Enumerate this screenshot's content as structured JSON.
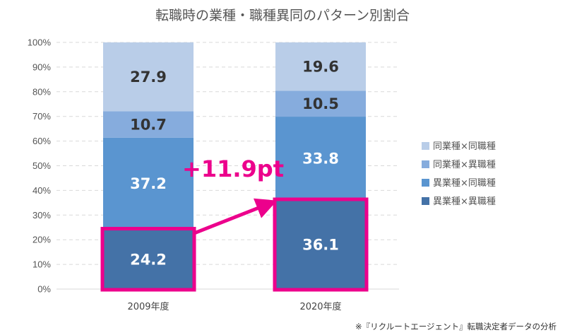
{
  "chart_data": {
    "type": "bar",
    "stacked": true,
    "title": "転職時の業種・職種異同のパターン別割合",
    "categories": [
      "2009年度",
      "2020年度"
    ],
    "series": [
      {
        "name": "異業種×異職種",
        "values": [
          24.2,
          36.1
        ],
        "color": "#4472a7",
        "label_color": "#ffffff"
      },
      {
        "name": "異業種×同職種",
        "values": [
          37.2,
          33.8
        ],
        "color": "#5a95d0",
        "label_color": "#ffffff"
      },
      {
        "name": "同業種×異職種",
        "values": [
          10.7,
          10.5
        ],
        "color": "#86acdd",
        "label_color": "#333333"
      },
      {
        "name": "同業種×同職種",
        "values": [
          27.9,
          19.6
        ],
        "color": "#b9cde8",
        "label_color": "#333333"
      }
    ],
    "ylim": [
      0,
      100
    ],
    "yticks": [
      "0%",
      "10%",
      "20%",
      "30%",
      "40%",
      "50%",
      "60%",
      "70%",
      "80%",
      "90%",
      "100%"
    ],
    "grid": true,
    "legend_position": "right",
    "annotation": {
      "text": "+11.9pt",
      "color": "#ec008c"
    },
    "highlight_series": "異業種×異職種",
    "source": "※『リクルートエージェント』転職決定者データの分析"
  }
}
